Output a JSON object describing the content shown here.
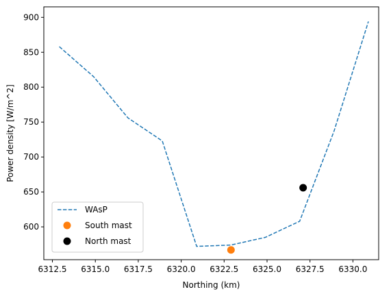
{
  "chart_data": {
    "type": "line",
    "title": "",
    "xlabel": "Northing (km)",
    "ylabel": "Power density [W/m^2]",
    "xlim": [
      6312.0,
      6331.5
    ],
    "ylim": [
      553,
      915
    ],
    "xticks": [
      6312.5,
      6315.0,
      6317.5,
      6320.0,
      6322.5,
      6325.0,
      6327.5,
      6330.0
    ],
    "xtick_labels": [
      "6312.5",
      "6315.0",
      "6317.5",
      "6320.0",
      "6322.5",
      "6325.0",
      "6327.5",
      "6330.0"
    ],
    "yticks": [
      600,
      650,
      700,
      750,
      800,
      850,
      900
    ],
    "ytick_labels": [
      "600",
      "650",
      "700",
      "750",
      "800",
      "850",
      "900"
    ],
    "grid": false,
    "legend_position": "lower-left",
    "series": [
      {
        "name": "WAsP",
        "kind": "line",
        "style": "dashed",
        "color": "#1f77b4",
        "x": [
          6312.9,
          6314.9,
          6316.9,
          6318.9,
          6320.9,
          6322.9,
          6324.9,
          6326.9,
          6328.9,
          6330.9
        ],
        "y": [
          858,
          815,
          756,
          723,
          572,
          574,
          585,
          608,
          737,
          894
        ]
      },
      {
        "name": "South mast",
        "kind": "marker",
        "color": "#ff7f0e",
        "x": [
          6322.9
        ],
        "y": [
          567
        ]
      },
      {
        "name": "North mast",
        "kind": "marker",
        "color": "#000000",
        "x": [
          6327.1
        ],
        "y": [
          656
        ]
      }
    ]
  }
}
